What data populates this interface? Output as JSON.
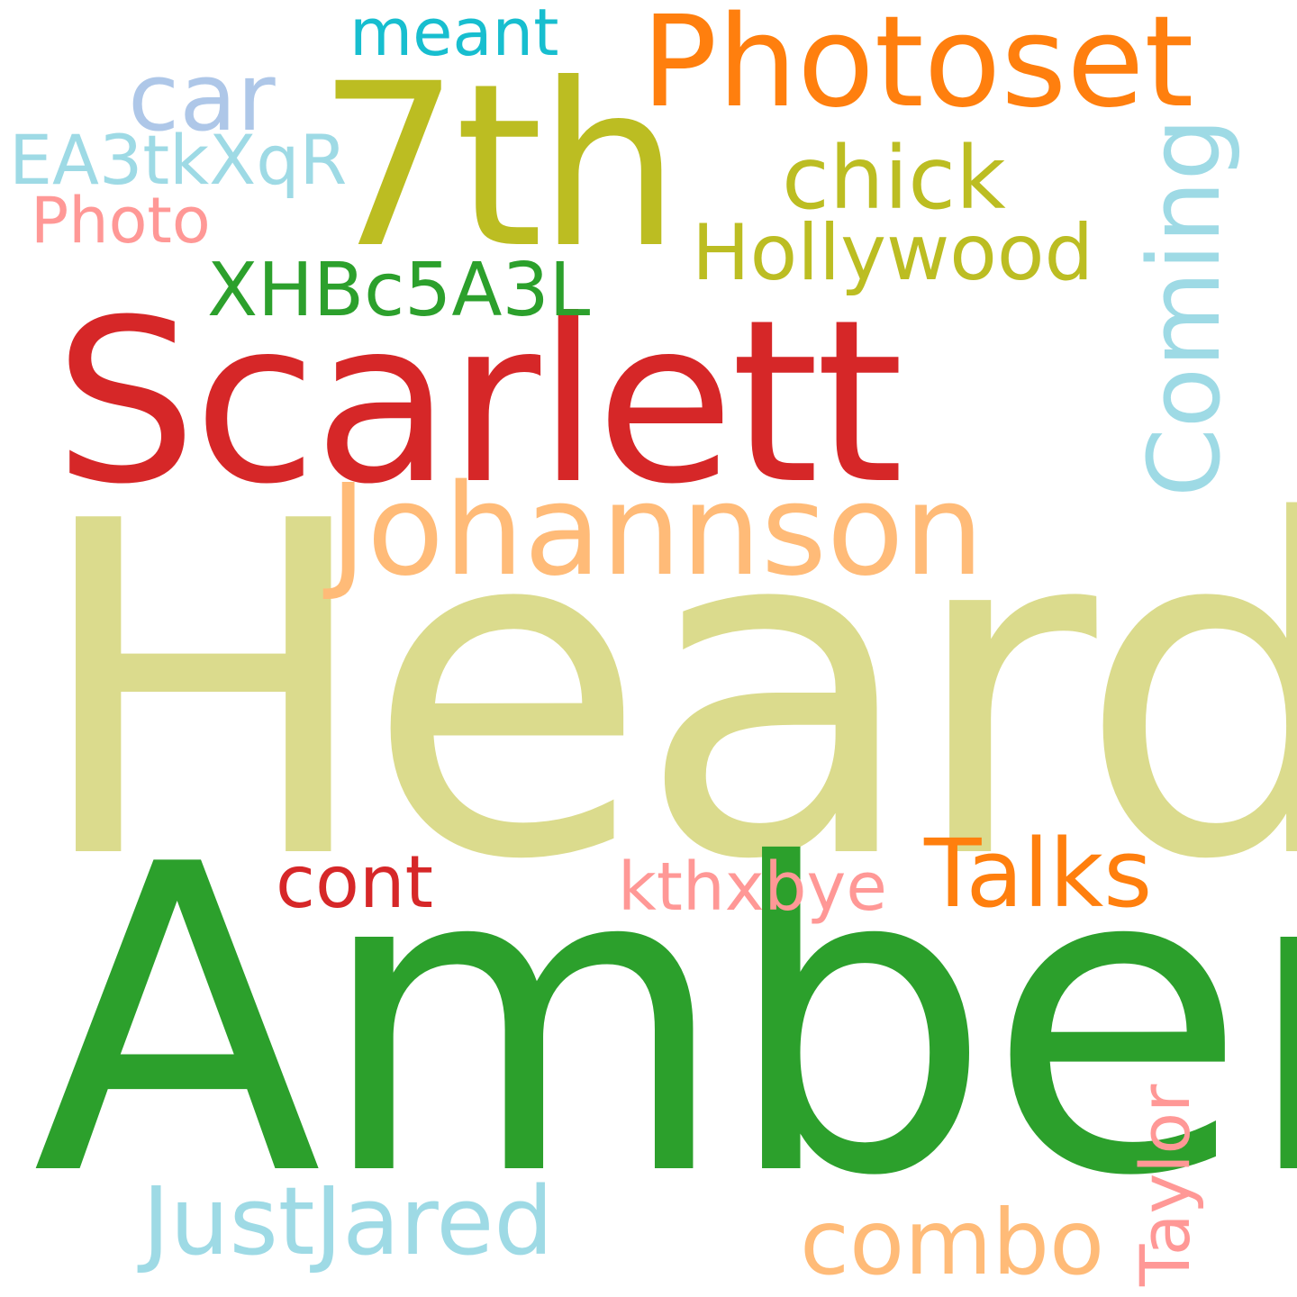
{
  "words": [
    {
      "key": "heard",
      "text": "Heard",
      "color": "#dbdb8d"
    },
    {
      "key": "amber",
      "text": "Amber",
      "color": "#2ca02c"
    },
    {
      "key": "scarlett",
      "text": "Scarlett",
      "color": "#d62728"
    },
    {
      "key": "7th",
      "text": "7th",
      "color": "#bcbd22"
    },
    {
      "key": "photoset",
      "text": "Photoset",
      "color": "#ff7f0e"
    },
    {
      "key": "johannson",
      "text": "Johannson",
      "color": "#ffbb78"
    },
    {
      "key": "coming",
      "text": "Coming",
      "color": "#9edae5"
    },
    {
      "key": "hollywood",
      "text": "Hollywood",
      "color": "#bcbd22"
    },
    {
      "key": "chick",
      "text": "chick",
      "color": "#bcbd22"
    },
    {
      "key": "car",
      "text": "car",
      "color": "#aec7e8"
    },
    {
      "key": "meant",
      "text": "meant",
      "color": "#17becf"
    },
    {
      "key": "ea3tkxqr",
      "text": "EA3tkXqR",
      "color": "#9edae5"
    },
    {
      "key": "photo",
      "text": "Photo",
      "color": "#ff9896"
    },
    {
      "key": "xhbc5a3l",
      "text": "XHBc5A3L",
      "color": "#2ca02c"
    },
    {
      "key": "talks",
      "text": "Talks",
      "color": "#ff7f0e"
    },
    {
      "key": "cont",
      "text": "cont",
      "color": "#d62728"
    },
    {
      "key": "kthxbye",
      "text": "kthxbye",
      "color": "#ff9896"
    },
    {
      "key": "justjared",
      "text": "JustJared",
      "color": "#9edae5"
    },
    {
      "key": "combo",
      "text": "combo",
      "color": "#ffbb78"
    },
    {
      "key": "taylor",
      "text": "Taylor",
      "color": "#ff9896"
    }
  ]
}
